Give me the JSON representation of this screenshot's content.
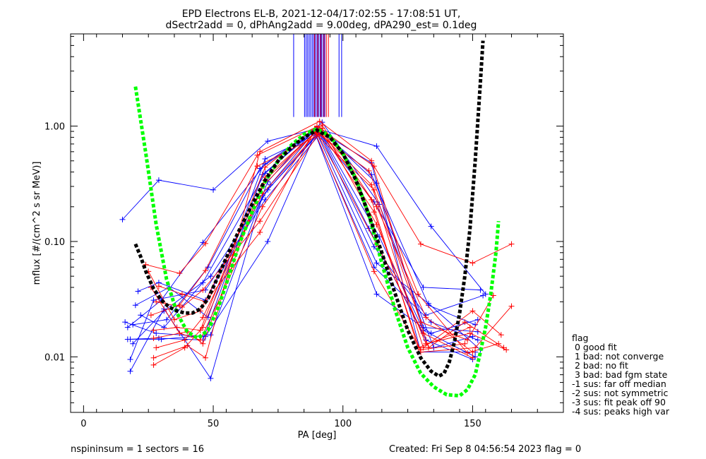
{
  "title_line1": "EPD Electrons EL-B, 2021-12-04/17:02:55 - 17:08:51 UT,",
  "title_line2": "dSectr2add = 0, dPhAng2add = 9.00deg, dPA290_est=   0.1deg",
  "footer": {
    "left": "nspininsum =  1  sectors = 16",
    "right": "Created: Fri Sep  8 04:56:54 2023   flag = 0"
  },
  "legend": {
    "title": "flag",
    "entries": [
      " 0 good fit",
      " 1 bad: not converge",
      " 2 bad: no fit",
      " 3 bad: bad fgm state",
      "-1 sus: far off median",
      "-2 sus: not symmetric",
      "-3 sus: fit peak off 90",
      "-4 sus: peaks high var"
    ]
  },
  "colors": {
    "blue": "#0000ff",
    "red": "#ff0000",
    "green_fit": "#00ff00",
    "black_fit": "#000000"
  },
  "chart_data": {
    "type": "line",
    "xlabel": "PA [deg]",
    "ylabel": "mflux [#/(cm^2 s sr MeV)]",
    "xlim": [
      -5,
      185
    ],
    "ylim": [
      0.0033,
      6.3
    ],
    "yscale": "log",
    "xticks": [
      0,
      50,
      100,
      150
    ],
    "xticklabels": [
      "0",
      "50",
      "100",
      "150"
    ],
    "yticks": [
      0.01,
      0.1,
      1.0
    ],
    "yticklabels": [
      "0.01",
      "0.10",
      "1.00"
    ],
    "vertical_lines": {
      "blue": [
        81,
        85.2,
        85.8,
        86.4,
        87,
        87.6,
        88.2,
        88.8,
        89.4,
        90,
        90.6,
        91.2,
        91.8,
        92.4,
        93,
        98.5,
        99.5
      ],
      "red": [
        89.1,
        90.3,
        91.5,
        92.7,
        93.6,
        94.4
      ],
      "y_range": [
        1.2,
        6.3
      ]
    },
    "series": [
      {
        "color": "blue",
        "points": [
          [
            15,
            0.155
          ],
          [
            29,
            0.34
          ],
          [
            50,
            0.28
          ],
          [
            71,
            0.74
          ],
          [
            90,
            0.95
          ],
          [
            113,
            0.67
          ],
          [
            134,
            0.135
          ],
          [
            155,
            0.035
          ]
        ]
      },
      {
        "color": "blue",
        "points": [
          [
            17,
            0.018
          ],
          [
            30,
            0.031
          ],
          [
            46,
            0.098
          ],
          [
            70,
            0.47
          ],
          [
            90,
            0.97
          ],
          [
            111,
            0.38
          ],
          [
            133,
            0.028
          ],
          [
            151,
            0.019
          ]
        ]
      },
      {
        "color": "blue",
        "points": [
          [
            18,
            0.0075
          ],
          [
            31,
            0.026
          ],
          [
            49,
            0.0065
          ],
          [
            69,
            0.25
          ],
          [
            91,
            0.88
          ],
          [
            110,
            0.13
          ],
          [
            132,
            0.014
          ],
          [
            150,
            0.0095
          ]
        ]
      },
      {
        "color": "blue",
        "points": [
          [
            16,
            0.02
          ],
          [
            28,
            0.016
          ],
          [
            47,
            0.015
          ],
          [
            71,
            0.1
          ],
          [
            90,
            0.93
          ],
          [
            112,
            0.22
          ],
          [
            131,
            0.04
          ],
          [
            153,
            0.038
          ]
        ]
      },
      {
        "color": "blue",
        "points": [
          [
            17,
            0.0142
          ],
          [
            29,
            0.0145
          ],
          [
            46,
            0.014
          ],
          [
            69,
            0.38
          ],
          [
            89,
            0.9
          ],
          [
            113,
            0.035
          ],
          [
            134,
            0.016
          ],
          [
            152,
            0.021
          ]
        ]
      },
      {
        "color": "blue",
        "points": [
          [
            19,
            0.019
          ],
          [
            32,
            0.021
          ],
          [
            48,
            0.06
          ],
          [
            68,
            0.43
          ],
          [
            90,
            0.94
          ],
          [
            111,
            0.48
          ],
          [
            130,
            0.011
          ],
          [
            151,
            0.011
          ]
        ]
      },
      {
        "color": "blue",
        "points": [
          [
            18,
            0.0095
          ],
          [
            27,
            0.031
          ],
          [
            47,
            0.038
          ],
          [
            70,
            0.23
          ],
          [
            91,
            0.85
          ],
          [
            112,
            0.09
          ],
          [
            132,
            0.023
          ],
          [
            154,
            0.034
          ]
        ]
      },
      {
        "color": "blue",
        "points": [
          [
            18,
            0.0142
          ],
          [
            30,
            0.0142
          ],
          [
            49,
            0.0155
          ],
          [
            71,
            0.33
          ],
          [
            90,
            0.99
          ],
          [
            113,
            0.32
          ],
          [
            131,
            0.018
          ],
          [
            152,
            0.0165
          ]
        ]
      },
      {
        "color": "blue",
        "points": [
          [
            22,
            0.023
          ],
          [
            31,
            0.018
          ],
          [
            46,
            0.044
          ],
          [
            70,
            0.39
          ],
          [
            92,
            1.08
          ],
          [
            114,
            0.21
          ],
          [
            135,
            0.012
          ],
          [
            150,
            0.015
          ]
        ]
      },
      {
        "color": "blue",
        "points": [
          [
            20,
            0.028
          ],
          [
            33,
            0.04
          ],
          [
            48,
            0.022
          ],
          [
            70,
            0.52
          ],
          [
            90,
            0.86
          ],
          [
            113,
            0.065
          ],
          [
            133,
            0.029
          ],
          [
            153,
            0.0115
          ]
        ]
      },
      {
        "color": "blue",
        "points": [
          [
            21,
            0.037
          ],
          [
            29,
            0.044
          ],
          [
            47,
            0.031
          ],
          [
            72,
            0.31
          ],
          [
            89,
            0.89
          ],
          [
            112,
            0.06
          ],
          [
            134,
            0.02
          ],
          [
            152,
            0.014
          ]
        ]
      },
      {
        "color": "blue",
        "points": [
          [
            19,
            0.013
          ],
          [
            31,
            0.025
          ],
          [
            49,
            0.05
          ],
          [
            71,
            0.28
          ],
          [
            91,
            0.9
          ],
          [
            114,
            0.11
          ],
          [
            131,
            0.017
          ],
          [
            151,
            0.01
          ]
        ]
      },
      {
        "color": "red",
        "points": [
          [
            24,
            0.063
          ],
          [
            37,
            0.053
          ],
          [
            47,
            0.096
          ],
          [
            67,
            0.56
          ],
          [
            90,
            0.99
          ],
          [
            112,
            0.45
          ],
          [
            130,
            0.095
          ],
          [
            150,
            0.065
          ],
          [
            165,
            0.095
          ]
        ]
      },
      {
        "color": "red",
        "points": [
          [
            27,
            0.0098
          ],
          [
            40,
            0.0125
          ],
          [
            47,
            0.0098
          ],
          [
            68,
            0.6
          ],
          [
            91,
            1.1
          ],
          [
            111,
            0.5
          ],
          [
            133,
            0.012
          ],
          [
            147,
            0.02
          ],
          [
            162,
            0.012
          ]
        ]
      },
      {
        "color": "red",
        "points": [
          [
            26,
            0.04
          ],
          [
            37,
            0.016
          ],
          [
            45,
            0.014
          ],
          [
            69,
            0.2
          ],
          [
            89,
            0.88
          ],
          [
            112,
            0.28
          ],
          [
            130,
            0.02
          ],
          [
            148,
            0.014
          ],
          [
            158,
            0.034
          ]
        ]
      },
      {
        "color": "red",
        "points": [
          [
            27,
            0.0085
          ],
          [
            39,
            0.012
          ],
          [
            46,
            0.018
          ],
          [
            70,
            0.34
          ],
          [
            90,
            0.92
          ],
          [
            111,
            0.31
          ],
          [
            131,
            0.012
          ],
          [
            150,
            0.025
          ],
          [
            161,
            0.0155
          ]
        ]
      },
      {
        "color": "red",
        "points": [
          [
            28,
            0.03
          ],
          [
            38,
            0.027
          ],
          [
            46,
            0.038
          ],
          [
            68,
            0.15
          ],
          [
            92,
            0.96
          ],
          [
            113,
            0.14
          ],
          [
            132,
            0.013
          ],
          [
            149,
            0.016
          ],
          [
            163,
            0.0115
          ]
        ]
      },
      {
        "color": "red",
        "points": [
          [
            27,
            0.017
          ],
          [
            36,
            0.018
          ],
          [
            45,
            0.017
          ],
          [
            70,
            0.44
          ],
          [
            90,
            1.0
          ],
          [
            112,
            0.18
          ],
          [
            130,
            0.011
          ],
          [
            151,
            0.012
          ],
          [
            165,
            0.0275
          ]
        ]
      },
      {
        "color": "red",
        "points": [
          [
            26,
            0.023
          ],
          [
            37,
            0.028
          ],
          [
            47,
            0.056
          ],
          [
            67,
            0.45
          ],
          [
            91,
            0.84
          ],
          [
            110,
            0.41
          ],
          [
            129,
            0.035
          ],
          [
            148,
            0.0108
          ],
          [
            160,
            0.013
          ]
        ]
      },
      {
        "color": "red",
        "points": [
          [
            28,
            0.012
          ],
          [
            39,
            0.014
          ],
          [
            46,
            0.022
          ],
          [
            69,
            0.26
          ],
          [
            90,
            0.87
          ],
          [
            113,
            0.095
          ],
          [
            131,
            0.016
          ],
          [
            150,
            0.0098
          ]
        ]
      },
      {
        "color": "red",
        "points": [
          [
            29,
            0.041
          ],
          [
            38,
            0.035
          ],
          [
            47,
            0.03
          ],
          [
            68,
            0.12
          ],
          [
            89,
            0.91
          ],
          [
            112,
            0.055
          ],
          [
            130,
            0.0115
          ],
          [
            147,
            0.013
          ]
        ]
      },
      {
        "color": "red",
        "points": [
          [
            27,
            0.0145
          ],
          [
            40,
            0.0165
          ],
          [
            46,
            0.013
          ],
          [
            70,
            0.36
          ],
          [
            91,
            0.95
          ],
          [
            111,
            0.23
          ],
          [
            129,
            0.012
          ],
          [
            149,
            0.018
          ]
        ]
      },
      {
        "color": "red",
        "points": [
          [
            25,
            0.055
          ],
          [
            35,
            0.021
          ],
          [
            45,
            0.025
          ],
          [
            69,
            0.3
          ],
          [
            92,
            1.02
          ],
          [
            113,
            0.2
          ],
          [
            132,
            0.022
          ],
          [
            150,
            0.011
          ]
        ]
      }
    ],
    "fit_curves": [
      {
        "color": "green_fit",
        "points": [
          [
            20,
            2.2
          ],
          [
            24,
            0.58
          ],
          [
            28,
            0.14
          ],
          [
            32,
            0.047
          ],
          [
            36,
            0.024
          ],
          [
            40,
            0.0165
          ],
          [
            44,
            0.0145
          ],
          [
            48,
            0.017
          ],
          [
            52,
            0.027
          ],
          [
            56,
            0.05
          ],
          [
            60,
            0.095
          ],
          [
            65,
            0.18
          ],
          [
            70,
            0.33
          ],
          [
            75,
            0.5
          ],
          [
            80,
            0.68
          ],
          [
            85,
            0.85
          ],
          [
            90,
            0.95
          ],
          [
            95,
            0.82
          ],
          [
            100,
            0.58
          ],
          [
            105,
            0.35
          ],
          [
            110,
            0.17
          ],
          [
            115,
            0.065
          ],
          [
            120,
            0.026
          ],
          [
            125,
            0.012
          ],
          [
            130,
            0.0072
          ],
          [
            135,
            0.0055
          ],
          [
            140,
            0.0047
          ],
          [
            145,
            0.0046
          ],
          [
            148,
            0.0052
          ],
          [
            151,
            0.007
          ],
          [
            153,
            0.011
          ],
          [
            155,
            0.018
          ],
          [
            157,
            0.035
          ],
          [
            159,
            0.08
          ],
          [
            160,
            0.15
          ]
        ]
      },
      {
        "color": "black_fit",
        "points": [
          [
            20,
            0.095
          ],
          [
            22,
            0.074
          ],
          [
            24,
            0.055
          ],
          [
            27,
            0.039
          ],
          [
            30,
            0.031
          ],
          [
            33,
            0.027
          ],
          [
            36,
            0.025
          ],
          [
            39,
            0.024
          ],
          [
            42,
            0.024
          ],
          [
            45,
            0.026
          ],
          [
            48,
            0.032
          ],
          [
            51,
            0.045
          ],
          [
            55,
            0.072
          ],
          [
            60,
            0.125
          ],
          [
            65,
            0.21
          ],
          [
            70,
            0.34
          ],
          [
            75,
            0.5
          ],
          [
            80,
            0.65
          ],
          [
            85,
            0.8
          ],
          [
            90,
            0.92
          ],
          [
            95,
            0.8
          ],
          [
            100,
            0.58
          ],
          [
            105,
            0.34
          ],
          [
            110,
            0.17
          ],
          [
            115,
            0.08
          ],
          [
            120,
            0.036
          ],
          [
            125,
            0.017
          ],
          [
            130,
            0.0098
          ],
          [
            134,
            0.0075
          ],
          [
            137,
            0.0068
          ],
          [
            139,
            0.0072
          ],
          [
            141,
            0.009
          ],
          [
            143,
            0.0135
          ],
          [
            145,
            0.024
          ],
          [
            147,
            0.05
          ],
          [
            149,
            0.13
          ],
          [
            151,
            0.5
          ],
          [
            153,
            2.4
          ],
          [
            154,
            5.5
          ]
        ]
      }
    ]
  }
}
